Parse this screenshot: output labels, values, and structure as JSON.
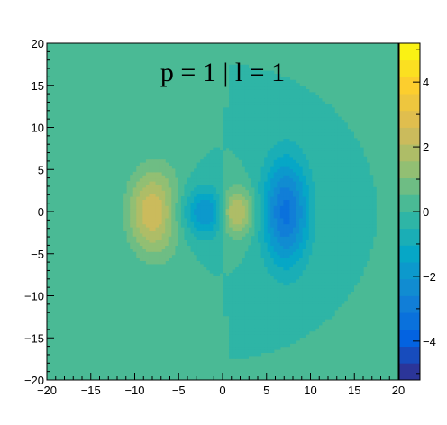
{
  "chart_data": {
    "type": "heatmap",
    "title": "p = 1 | l = 1",
    "xlabel": "",
    "ylabel": "",
    "xlim": [
      -20,
      20
    ],
    "ylim": [
      -20,
      20
    ],
    "zlim": [
      -5.2,
      5.2
    ],
    "x_ticks": [
      -20,
      -15,
      -10,
      -5,
      0,
      5,
      10,
      15,
      20
    ],
    "x_tick_labels": [
      "−20",
      "−15",
      "−10",
      "−5",
      "0",
      "5",
      "10",
      "15",
      "20"
    ],
    "y_ticks": [
      -20,
      -15,
      -10,
      -5,
      0,
      5,
      10,
      15,
      20
    ],
    "y_tick_labels": [
      "−20",
      "−15",
      "−10",
      "−5",
      "0",
      "5",
      "10",
      "15",
      "20"
    ],
    "colorbar_ticks": [
      -4,
      -2,
      0,
      2,
      4
    ],
    "colorbar_tick_labels": [
      "−4",
      "−2",
      "0",
      "2",
      "4"
    ],
    "contour_levels": 20,
    "features": [
      {
        "description": "positive peak",
        "x": 2.5,
        "y": 0,
        "z": 5.0
      },
      {
        "description": "negative peak",
        "x": -2.3,
        "y": 0,
        "z": -4.9
      },
      {
        "description": "positive outer lobe",
        "x": -6.5,
        "y": 0,
        "z": 3.4
      },
      {
        "description": "negative outer lobe",
        "x": 7.5,
        "y": 0,
        "z": -3.4
      }
    ],
    "colormap": [
      "#352a87",
      "#0363e1",
      "#1485d4",
      "#06a7c6",
      "#38b99e",
      "#92bf73",
      "#d9ba56",
      "#fcce2e",
      "#f9fb0e"
    ],
    "grid": false
  }
}
